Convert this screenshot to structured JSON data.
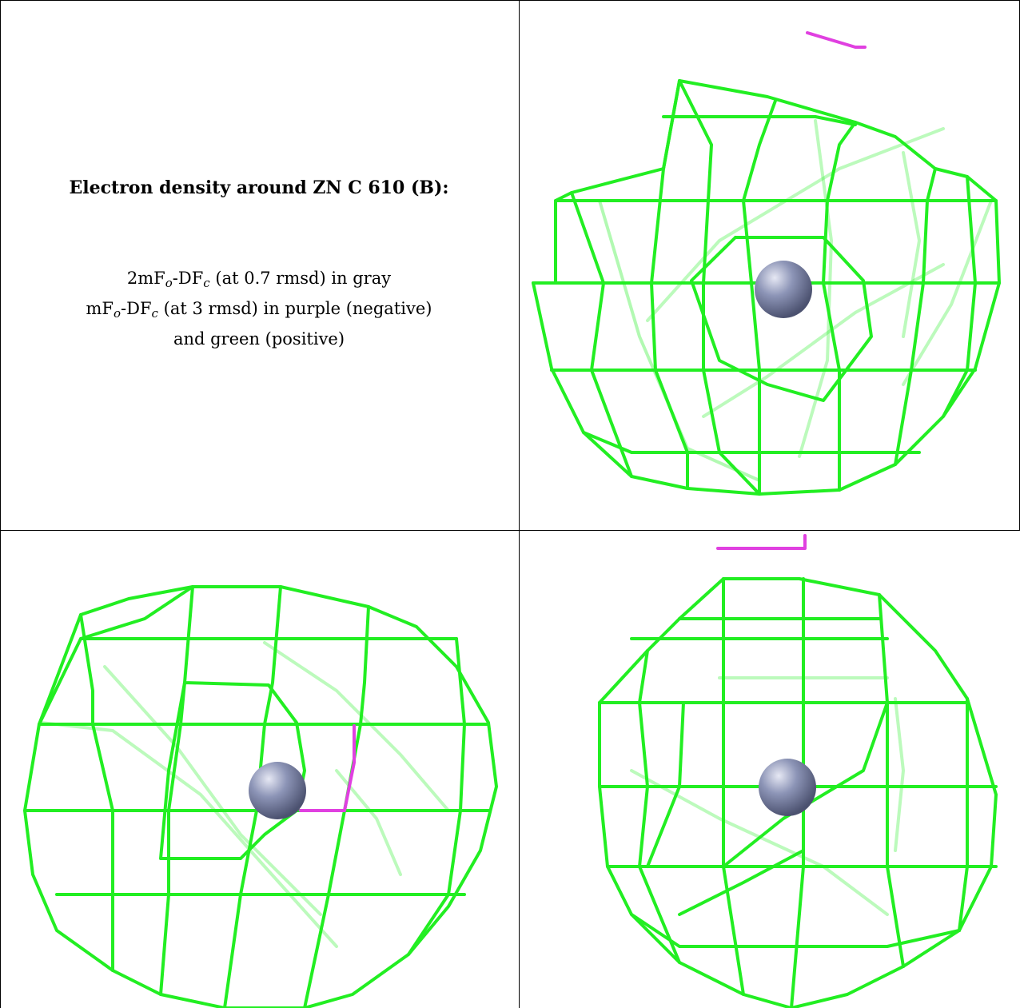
{
  "caption": {
    "title": "Electron density around ZN C 610 (B):",
    "line1": {
      "prefix": "2mF",
      "o": "o",
      "mid": "-DF",
      "c": "c",
      "suffix": " (at 0.7 rmsd) in gray"
    },
    "line2": {
      "prefix": "mF",
      "o": "o",
      "mid": "-DF",
      "c": "c",
      "suffix": " (at 3 rmsd) in purple (negative)"
    },
    "line3": "and green (positive)"
  },
  "colors": {
    "positive_mesh": "#22ee22",
    "negative_mesh": "#e040e0",
    "atom": "#8c94b6",
    "border": "#000000"
  },
  "views": [
    {
      "label": "view-top-right"
    },
    {
      "label": "view-bottom-left"
    },
    {
      "label": "view-bottom-right"
    }
  ]
}
